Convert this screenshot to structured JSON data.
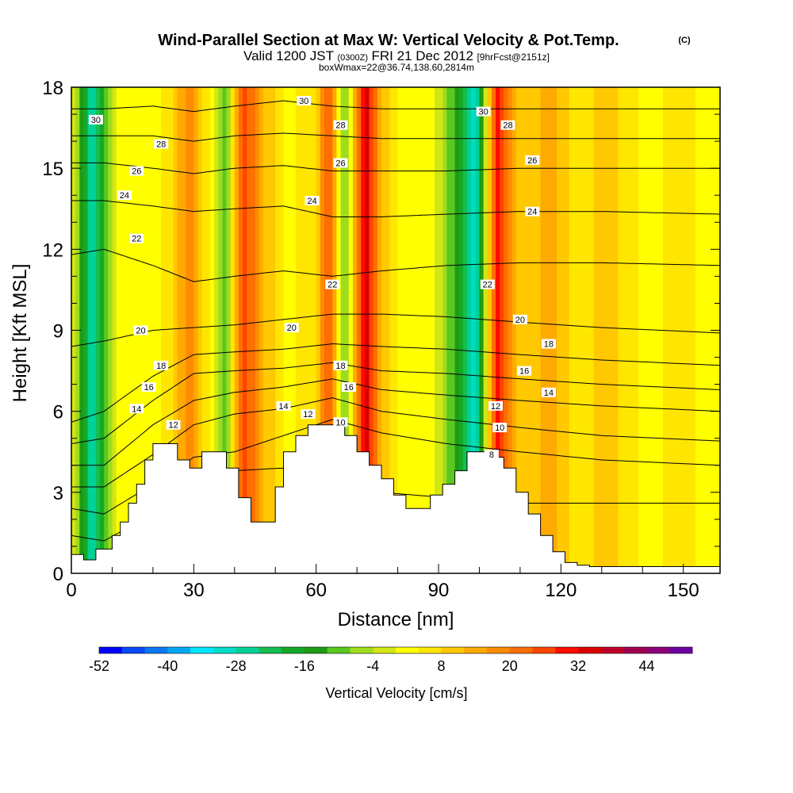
{
  "chart_data": {
    "type": "heatmap",
    "title": "Wind-Parallel Section at Max W: Vertical Velocity & Pot.Temp.",
    "title_mark": "(C)",
    "subtitle": {
      "valid": "Valid 1200 JST",
      "utc": "(0300Z)",
      "date": "FRI 21 Dec 2012",
      "fcst": "[9hrFcst@2151z]",
      "box": "boxWmax=22@36.74,138.60,2814m"
    },
    "xlabel": "Distance [nm]",
    "ylabel": "Height [Kft MSL]",
    "xlim": [
      0,
      159
    ],
    "ylim": [
      0,
      18
    ],
    "xticks": [
      0,
      30,
      60,
      90,
      120,
      150
    ],
    "yticks": [
      0,
      3,
      6,
      9,
      12,
      15,
      18
    ],
    "colorbar": {
      "label": "Vertical Velocity [cm/s]",
      "min": -52,
      "max": 52,
      "step": 4,
      "tick_labels": [
        -52,
        -40,
        -28,
        -16,
        -4,
        8,
        20,
        32,
        44
      ],
      "colors": [
        "#0000ff",
        "#0a48ff",
        "#0a78f5",
        "#00a8f5",
        "#00e6ff",
        "#00dcc8",
        "#00d296",
        "#14be50",
        "#14aa28",
        "#1e9b14",
        "#5ac81e",
        "#a0dc1e",
        "#d2e614",
        "#ffff00",
        "#ffe600",
        "#ffc800",
        "#ffaa00",
        "#ff8c00",
        "#ff6e00",
        "#ff4600",
        "#ff0a00",
        "#dc0000",
        "#be0028",
        "#a00050",
        "#8c0078",
        "#6e00a0"
      ]
    },
    "terrain_kft": {
      "x": [
        0,
        3,
        6,
        10,
        12,
        14,
        16,
        18,
        20,
        23,
        26,
        29,
        32,
        35,
        38,
        41,
        44,
        47,
        50,
        52,
        55,
        58,
        61,
        64,
        67,
        70,
        73,
        76,
        79,
        82,
        85,
        88,
        91,
        94,
        97,
        100,
        103,
        106,
        109,
        112,
        115,
        118,
        121,
        124,
        127,
        129,
        135,
        140,
        145,
        150,
        155,
        159
      ],
      "y": [
        0.7,
        0.5,
        0.9,
        1.4,
        1.9,
        2.6,
        3.3,
        4.2,
        4.8,
        4.8,
        4.2,
        3.9,
        4.5,
        4.5,
        3.9,
        2.8,
        1.9,
        1.9,
        3.2,
        4.5,
        5.1,
        5.5,
        5.5,
        5.5,
        5.1,
        4.5,
        4.0,
        3.5,
        2.9,
        2.4,
        2.4,
        2.9,
        3.3,
        3.8,
        4.5,
        4.5,
        4.3,
        3.9,
        3.0,
        2.2,
        1.4,
        0.8,
        0.4,
        0.3,
        0.25,
        0.25,
        0.25,
        0.25,
        0.25,
        0.25,
        0.25,
        0.25
      ]
    },
    "w_field_samples_cm_s": {
      "x": [
        0,
        5,
        12,
        20,
        25,
        29,
        33,
        38,
        42,
        47,
        53,
        60,
        63,
        67,
        72,
        76,
        82,
        88,
        95,
        99,
        104,
        110,
        117,
        124,
        132,
        140,
        150,
        159
      ],
      "values": [
        2,
        -28,
        4,
        1,
        8,
        20,
        6,
        -10,
        28,
        12,
        3,
        6,
        26,
        -10,
        36,
        12,
        1,
        4,
        -16,
        -34,
        30,
        8,
        14,
        6,
        10,
        3,
        5,
        2
      ]
    },
    "theta_contours": [
      {
        "level": 8,
        "y_kft": [
          1.4,
          1.2,
          2.2,
          3.2,
          3.8,
          3.9,
          3.6,
          3.0,
          2.8,
          2.6,
          2.6,
          2.6
        ]
      },
      {
        "level": 10,
        "y_kft": [
          2.4,
          2.2,
          3.3,
          4.3,
          4.5,
          5.1,
          5.7,
          5.2,
          4.8,
          4.5,
          4.2,
          4.0
        ]
      },
      {
        "level": 12,
        "y_kft": [
          3.2,
          3.2,
          4.4,
          5.5,
          5.9,
          6.1,
          6.5,
          6.0,
          5.7,
          5.4,
          5.1,
          4.9
        ]
      },
      {
        "level": 14,
        "y_kft": [
          4.0,
          4.0,
          5.5,
          6.4,
          6.7,
          6.9,
          7.2,
          6.8,
          6.6,
          6.4,
          6.2,
          6.0
        ]
      },
      {
        "level": 16,
        "y_kft": [
          4.8,
          5.0,
          6.4,
          7.4,
          7.5,
          7.6,
          7.8,
          7.5,
          7.4,
          7.2,
          7.0,
          6.8
        ]
      },
      {
        "level": 18,
        "y_kft": [
          5.6,
          6.0,
          7.3,
          8.1,
          8.2,
          8.3,
          8.5,
          8.4,
          8.3,
          8.1,
          7.9,
          7.7
        ]
      },
      {
        "level": 20,
        "y_kft": [
          8.4,
          8.6,
          9.0,
          9.1,
          9.2,
          9.4,
          9.6,
          9.6,
          9.5,
          9.3,
          9.1,
          8.9
        ]
      },
      {
        "level": 22,
        "y_kft": [
          11.8,
          12.0,
          11.4,
          10.8,
          11.0,
          11.2,
          11.0,
          11.2,
          11.4,
          11.5,
          11.5,
          11.4
        ]
      },
      {
        "level": 24,
        "y_kft": [
          13.8,
          13.8,
          13.6,
          13.4,
          13.5,
          13.6,
          13.2,
          13.2,
          13.3,
          13.4,
          13.4,
          13.3
        ]
      },
      {
        "level": 26,
        "y_kft": [
          15.2,
          15.2,
          15.0,
          14.8,
          15.0,
          15.1,
          14.9,
          14.9,
          14.9,
          15.0,
          15.0,
          15.0
        ]
      },
      {
        "level": 28,
        "y_kft": [
          16.2,
          16.2,
          16.2,
          16.0,
          16.2,
          16.3,
          16.2,
          16.1,
          16.1,
          16.1,
          16.1,
          16.1
        ]
      },
      {
        "level": 30,
        "y_kft": [
          17.2,
          17.2,
          17.3,
          17.1,
          17.3,
          17.5,
          17.3,
          17.2,
          17.2,
          17.2,
          17.2,
          17.2
        ]
      }
    ],
    "theta_contour_x": [
      0,
      8,
      20,
      30,
      40,
      52,
      64,
      76,
      92,
      110,
      130,
      159
    ],
    "contour_labels": [
      {
        "text": "30",
        "x": 6,
        "y": 16.8
      },
      {
        "text": "28",
        "x": 22,
        "y": 15.9
      },
      {
        "text": "26",
        "x": 16,
        "y": 14.9
      },
      {
        "text": "24",
        "x": 13,
        "y": 14.0
      },
      {
        "text": "22",
        "x": 16,
        "y": 12.4
      },
      {
        "text": "20",
        "x": 17,
        "y": 9.0
      },
      {
        "text": "18",
        "x": 22,
        "y": 7.7
      },
      {
        "text": "16",
        "x": 19,
        "y": 6.9
      },
      {
        "text": "14",
        "x": 16,
        "y": 6.1
      },
      {
        "text": "12",
        "x": 25,
        "y": 5.5
      },
      {
        "text": "30",
        "x": 57,
        "y": 17.5
      },
      {
        "text": "28",
        "x": 66,
        "y": 16.6
      },
      {
        "text": "26",
        "x": 66,
        "y": 15.2
      },
      {
        "text": "24",
        "x": 59,
        "y": 13.8
      },
      {
        "text": "22",
        "x": 64,
        "y": 10.7
      },
      {
        "text": "20",
        "x": 54,
        "y": 9.1
      },
      {
        "text": "18",
        "x": 66,
        "y": 7.7
      },
      {
        "text": "16",
        "x": 68,
        "y": 6.9
      },
      {
        "text": "14",
        "x": 52,
        "y": 6.2
      },
      {
        "text": "12",
        "x": 58,
        "y": 5.9
      },
      {
        "text": "10",
        "x": 66,
        "y": 5.6
      },
      {
        "text": "30",
        "x": 101,
        "y": 17.1
      },
      {
        "text": "28",
        "x": 107,
        "y": 16.6
      },
      {
        "text": "26",
        "x": 113,
        "y": 15.3
      },
      {
        "text": "24",
        "x": 113,
        "y": 13.4
      },
      {
        "text": "22",
        "x": 102,
        "y": 10.7
      },
      {
        "text": "20",
        "x": 110,
        "y": 9.4
      },
      {
        "text": "18",
        "x": 117,
        "y": 8.5
      },
      {
        "text": "16",
        "x": 111,
        "y": 7.5
      },
      {
        "text": "14",
        "x": 117,
        "y": 6.7
      },
      {
        "text": "12",
        "x": 104,
        "y": 6.2
      },
      {
        "text": "10",
        "x": 105,
        "y": 5.4
      },
      {
        "text": "8",
        "x": 103,
        "y": 4.4
      }
    ],
    "grid": false,
    "legend": "bottom colorbar"
  }
}
